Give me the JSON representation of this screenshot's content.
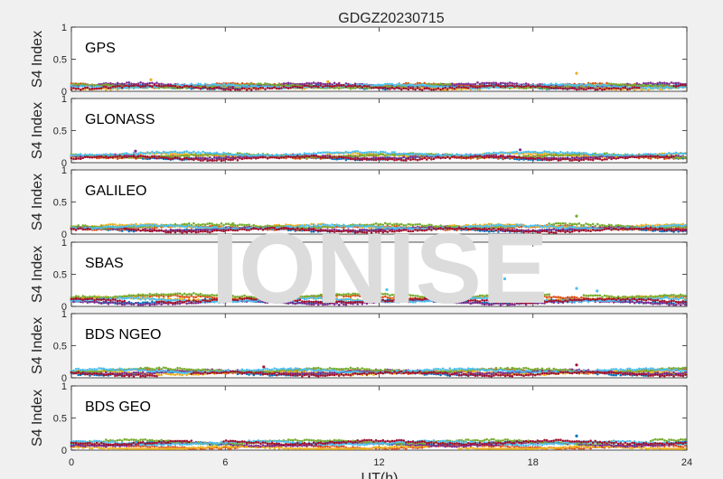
{
  "title": "GDGZ20230715",
  "watermark": "IONISE",
  "chart_data": {
    "type": "scatter",
    "title": "GDGZ20230715",
    "xlabel": "UT(h)",
    "ylabel": "S4 Index",
    "xlim": [
      0,
      24
    ],
    "ylim": [
      0,
      1
    ],
    "xticks": [
      "0",
      "6",
      "12",
      "18",
      "24"
    ],
    "yticks": [
      "0",
      "0.5",
      "1"
    ],
    "grid": false,
    "series_colors": [
      "#0072bd",
      "#d95319",
      "#edb120",
      "#7e2f8e",
      "#77ac30",
      "#4dbeee",
      "#a2142f"
    ],
    "panels": [
      {
        "name": "GPS",
        "baselines": [
          0.07,
          0.09,
          0.06,
          0.1,
          0.08,
          0.08,
          0.06
        ],
        "spikes": [
          {
            "x": 3.1,
            "y": 0.18
          },
          {
            "x": 19.7,
            "y": 0.28
          },
          {
            "x": 10.0,
            "y": 0.15
          }
        ]
      },
      {
        "name": "GLONASS",
        "baselines": [
          0.08,
          0.1,
          0.12,
          0.09,
          0.11,
          0.14,
          0.07
        ],
        "spikes": [
          {
            "x": 2.5,
            "y": 0.18
          },
          {
            "x": 17.5,
            "y": 0.2
          }
        ]
      },
      {
        "name": "GALILEO",
        "baselines": [
          0.07,
          0.1,
          0.12,
          0.08,
          0.13,
          0.11,
          0.06
        ],
        "spikes": [
          {
            "x": 19.7,
            "y": 0.28
          },
          {
            "x": 6.3,
            "y": 0.16
          }
        ]
      },
      {
        "name": "SBAS",
        "baselines": [
          0.08,
          0.14,
          0.12,
          0.06,
          0.17,
          0.1,
          0.09
        ],
        "spikes": [
          {
            "x": 16.9,
            "y": 0.43
          },
          {
            "x": 12.3,
            "y": 0.26
          },
          {
            "x": 19.7,
            "y": 0.28
          },
          {
            "x": 20.5,
            "y": 0.24
          }
        ]
      },
      {
        "name": "BDS NGEO",
        "baselines": [
          0.07,
          0.1,
          0.08,
          0.09,
          0.12,
          0.11,
          0.06
        ],
        "spikes": [
          {
            "x": 19.7,
            "y": 0.2
          },
          {
            "x": 7.5,
            "y": 0.17
          }
        ]
      },
      {
        "name": "BDS GEO",
        "baselines": [
          0.1,
          0.05,
          0.03,
          0.09,
          0.13,
          0.11,
          0.12
        ],
        "spikes": [
          {
            "x": 19.7,
            "y": 0.22
          }
        ]
      }
    ]
  }
}
